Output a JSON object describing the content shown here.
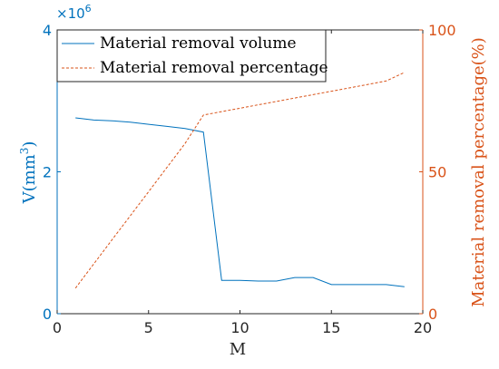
{
  "chart_data": {
    "type": "line",
    "xlabel": "M",
    "xlim": [
      0,
      20
    ],
    "xticks": [
      0,
      5,
      10,
      15,
      20
    ],
    "x": [
      1,
      2,
      3,
      4,
      5,
      6,
      7,
      8,
      9,
      10,
      11,
      12,
      13,
      14,
      15,
      16,
      17,
      18,
      19
    ],
    "left_axis": {
      "label_main": "V(mm",
      "label_sup": "3",
      "label_close": ")",
      "multiplier_base": "×10",
      "multiplier_exp": "6",
      "ylim": [
        0,
        4
      ],
      "ticks": [
        0,
        2,
        4
      ],
      "color": "#0072BD"
    },
    "right_axis": {
      "label": "Material removal percentage(%)",
      "ylim": [
        0,
        100
      ],
      "ticks": [
        0,
        50,
        100
      ],
      "color": "#D95319"
    },
    "series": [
      {
        "name": "Material removal volume",
        "axis": "left",
        "style": "solid",
        "color": "#0072BD",
        "values": [
          2.76,
          2.73,
          2.72,
          2.7,
          2.67,
          2.64,
          2.61,
          2.56,
          0.47,
          0.47,
          0.46,
          0.46,
          0.51,
          0.51,
          0.41,
          0.41,
          0.41,
          0.41,
          0.38
        ]
      },
      {
        "name": "Material removal percentage",
        "axis": "right",
        "style": "dashed",
        "color": "#D95319",
        "values": [
          9,
          17.5,
          26,
          34.5,
          43,
          51.5,
          60,
          70,
          71.2,
          72.4,
          73.6,
          74.8,
          76,
          77.2,
          78.4,
          79.6,
          80.8,
          82,
          85
        ]
      }
    ],
    "legend_placement": "top-left",
    "grid": false
  }
}
